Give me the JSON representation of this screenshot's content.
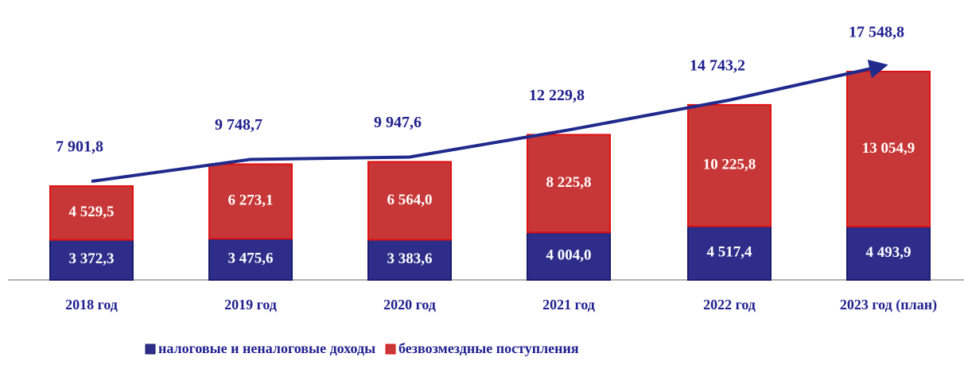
{
  "chart_data": {
    "type": "stacked_bar",
    "categories": [
      "2018 год",
      "2019 год",
      "2020 год",
      "2021 год",
      "2022 год",
      "2023 год (план)"
    ],
    "series": [
      {
        "name": "налоговые и неналоговые доходы",
        "color": "#2e2e8a",
        "values": [
          3372.3,
          3475.6,
          3383.6,
          4004.0,
          4517.4,
          4493.9
        ],
        "value_labels": [
          "3 372,3",
          "3 475,6",
          "3 383,6",
          "4 004,0",
          "4 517,4",
          "4 493,9"
        ]
      },
      {
        "name": "безвозмездные поступления",
        "color": "#c83737",
        "values": [
          4529.5,
          6273.1,
          6564.0,
          8225.8,
          10225.8,
          13054.9
        ],
        "value_labels": [
          "4 529,5",
          "6 273,1",
          "6 564,0",
          "8 225,8",
          "10 225,8",
          "13 054,9"
        ]
      }
    ],
    "totals": [
      7901.8,
      9748.7,
      9947.6,
      12229.8,
      14743.2,
      17548.8
    ],
    "total_labels": [
      "7 901,8",
      "9 748,7",
      "9 947,6",
      "12 229,8",
      "14 743,2",
      "17 548,8"
    ]
  }
}
